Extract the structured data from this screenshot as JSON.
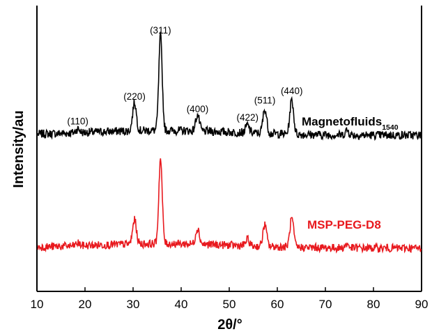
{
  "chart_data": {
    "type": "line",
    "xlabel": "2θ/°",
    "ylabel": "Intensity/au",
    "xlim": [
      10,
      90
    ],
    "xticks": [
      "10",
      "20",
      "30",
      "40",
      "50",
      "60",
      "70",
      "80",
      "90"
    ],
    "yticks_shown": false,
    "grid": false,
    "legend": "inline-right",
    "peak_labels": [
      {
        "text": "(110)",
        "x": 18.5
      },
      {
        "text": "(220)",
        "x": 30.3
      },
      {
        "text": "(311)",
        "x": 35.7
      },
      {
        "text": "(400)",
        "x": 43.4
      },
      {
        "text": "(422)",
        "x": 53.8
      },
      {
        "text": "(511)",
        "x": 57.4
      },
      {
        "text": "(440)",
        "x": 63.0
      }
    ],
    "series": [
      {
        "name": "Magnetofluids",
        "name_subscript": "1540",
        "color": "#000000",
        "peaks": [
          {
            "x": 18.5,
            "height": 0.04
          },
          {
            "x": 30.3,
            "height": 0.3
          },
          {
            "x": 35.7,
            "height": 1.0
          },
          {
            "x": 43.4,
            "height": 0.17
          },
          {
            "x": 53.8,
            "height": 0.08
          },
          {
            "x": 57.4,
            "height": 0.26
          },
          {
            "x": 63.0,
            "height": 0.36
          },
          {
            "x": 74.5,
            "height": 0.05
          }
        ]
      },
      {
        "name": "MSP-PEG-D8",
        "color": "#e8191e",
        "peaks": [
          {
            "x": 18.5,
            "height": 0.03
          },
          {
            "x": 30.3,
            "height": 0.27
          },
          {
            "x": 35.7,
            "height": 0.95
          },
          {
            "x": 43.4,
            "height": 0.18
          },
          {
            "x": 53.8,
            "height": 0.07
          },
          {
            "x": 57.4,
            "height": 0.24
          },
          {
            "x": 63.0,
            "height": 0.32
          },
          {
            "x": 74.5,
            "height": 0.04
          }
        ]
      }
    ]
  }
}
